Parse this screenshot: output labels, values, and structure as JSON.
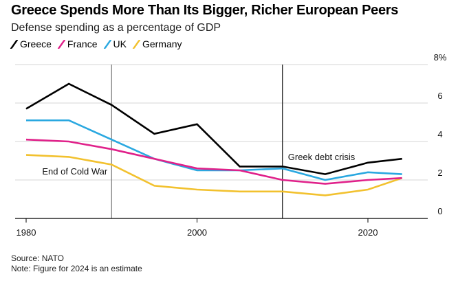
{
  "chart_data": {
    "type": "line",
    "title": "Greece Spends More Than Its Bigger, Richer European Peers",
    "subtitle": "Defense spending as a percentage of GDP",
    "xlabel": "",
    "ylabel": "",
    "x": [
      1980,
      1985,
      1990,
      1995,
      2000,
      2005,
      2010,
      2015,
      2020,
      2024
    ],
    "xlim": [
      1980,
      2027
    ],
    "ylim": [
      0,
      8
    ],
    "x_ticks": [
      1980,
      2000,
      2020
    ],
    "x_tick_labels": [
      "1980",
      "2000",
      "2020"
    ],
    "y_ticks": [
      0,
      2,
      4,
      6,
      8
    ],
    "y_tick_labels": [
      "0",
      "2",
      "4",
      "6",
      "8%"
    ],
    "grid": true,
    "legend_position": "top-left",
    "series": [
      {
        "name": "Greece",
        "color": "#000000",
        "values": [
          5.7,
          7.0,
          5.9,
          4.4,
          4.9,
          2.7,
          2.7,
          2.3,
          2.9,
          3.1
        ]
      },
      {
        "name": "France",
        "color": "#e0218a",
        "values": [
          4.1,
          4.0,
          3.6,
          3.1,
          2.6,
          2.5,
          2.0,
          1.8,
          2.0,
          2.1
        ]
      },
      {
        "name": "UK",
        "color": "#2aa8e0",
        "values": [
          5.1,
          5.1,
          4.1,
          3.1,
          2.5,
          2.5,
          2.6,
          2.0,
          2.4,
          2.3
        ]
      },
      {
        "name": "Germany",
        "color": "#f2c12e",
        "values": [
          3.3,
          3.2,
          2.8,
          1.7,
          1.5,
          1.4,
          1.4,
          1.2,
          1.5,
          2.1
        ]
      }
    ],
    "annotations": [
      {
        "label": "End of Cold War",
        "x": 1990
      },
      {
        "label": "Greek debt crisis",
        "x": 2010
      }
    ]
  },
  "footer": {
    "source": "Source: NATO",
    "note": "Note: Figure for 2024 is an estimate"
  }
}
